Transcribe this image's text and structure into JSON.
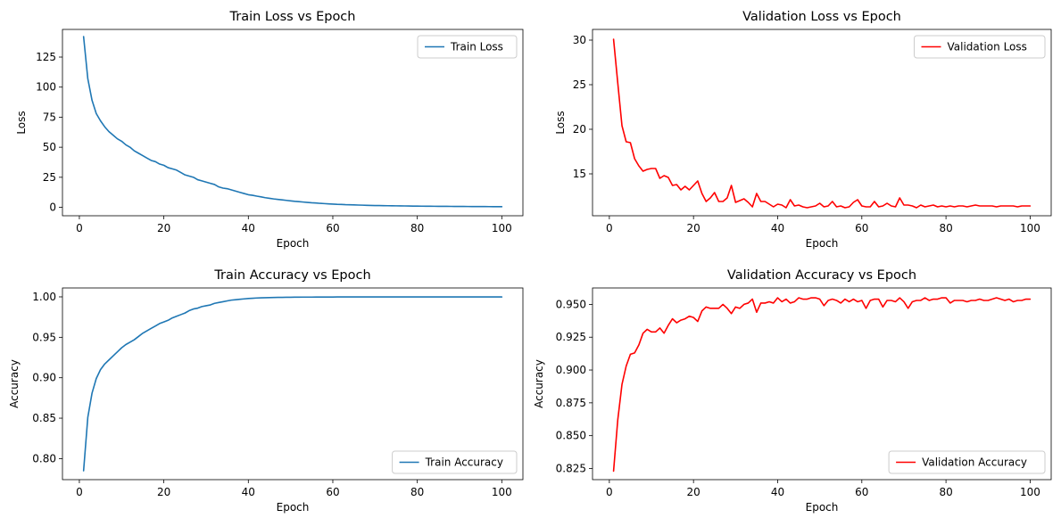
{
  "chart_data": [
    {
      "type": "line",
      "title": "Train Loss vs Epoch",
      "xlabel": "Epoch",
      "ylabel": "Loss",
      "xlim": [
        -4,
        105
      ],
      "ylim": [
        -7,
        148
      ],
      "xticks": [
        0,
        20,
        40,
        60,
        80,
        100
      ],
      "yticks": [
        0,
        25,
        50,
        75,
        100,
        125
      ],
      "legend": "top-right",
      "series": [
        {
          "name": "Train Loss",
          "color": "#1f77b4",
          "x": [
            1,
            2,
            3,
            4,
            5,
            6,
            7,
            8,
            9,
            10,
            11,
            12,
            13,
            14,
            15,
            16,
            17,
            18,
            19,
            20,
            21,
            22,
            23,
            24,
            25,
            26,
            27,
            28,
            29,
            30,
            31,
            32,
            33,
            34,
            35,
            36,
            37,
            38,
            39,
            40,
            41,
            42,
            43,
            44,
            45,
            46,
            47,
            48,
            49,
            50,
            51,
            52,
            53,
            54,
            55,
            56,
            57,
            58,
            59,
            60,
            61,
            62,
            63,
            64,
            65,
            66,
            67,
            68,
            69,
            70,
            71,
            72,
            73,
            74,
            75,
            76,
            77,
            78,
            79,
            80,
            81,
            82,
            83,
            84,
            85,
            86,
            87,
            88,
            89,
            90,
            91,
            92,
            93,
            94,
            95,
            96,
            97,
            98,
            99,
            100
          ],
          "y": [
            142,
            107,
            89,
            78,
            72,
            67,
            63,
            60,
            57,
            55,
            52,
            50,
            47,
            45,
            43,
            41,
            39,
            38,
            36,
            35,
            33,
            32,
            31,
            29,
            27,
            26,
            25,
            23,
            22,
            21,
            20,
            19,
            17,
            16,
            15.5,
            14.5,
            13.5,
            12.5,
            11.5,
            10.5,
            10,
            9.3,
            8.7,
            8,
            7.5,
            7,
            6.6,
            6.2,
            5.8,
            5.4,
            5,
            4.7,
            4.4,
            4.1,
            3.8,
            3.6,
            3.3,
            3.1,
            2.9,
            2.7,
            2.5,
            2.4,
            2.2,
            2.1,
            2,
            1.9,
            1.8,
            1.7,
            1.6,
            1.5,
            1.45,
            1.4,
            1.35,
            1.3,
            1.25,
            1.2,
            1.15,
            1.1,
            1.05,
            1.0,
            0.97,
            0.94,
            0.91,
            0.88,
            0.85,
            0.82,
            0.8,
            0.78,
            0.76,
            0.74,
            0.72,
            0.7,
            0.68,
            0.66,
            0.64,
            0.62,
            0.6,
            0.58,
            0.56,
            0.55
          ]
        }
      ]
    },
    {
      "type": "line",
      "title": "Validation Loss vs Epoch",
      "xlabel": "Epoch",
      "ylabel": "Loss",
      "xlim": [
        -4,
        105
      ],
      "ylim": [
        10.3,
        31.2
      ],
      "xticks": [
        0,
        20,
        40,
        60,
        80,
        100
      ],
      "yticks": [
        15,
        20,
        25,
        30
      ],
      "legend": "top-right",
      "series": [
        {
          "name": "Validation Loss",
          "color": "#ff0000",
          "x": [
            1,
            2,
            3,
            4,
            5,
            6,
            7,
            8,
            9,
            10,
            11,
            12,
            13,
            14,
            15,
            16,
            17,
            18,
            19,
            20,
            21,
            22,
            23,
            24,
            25,
            26,
            27,
            28,
            29,
            30,
            31,
            32,
            33,
            34,
            35,
            36,
            37,
            38,
            39,
            40,
            41,
            42,
            43,
            44,
            45,
            46,
            47,
            48,
            49,
            50,
            51,
            52,
            53,
            54,
            55,
            56,
            57,
            58,
            59,
            60,
            61,
            62,
            63,
            64,
            65,
            66,
            67,
            68,
            69,
            70,
            71,
            72,
            73,
            74,
            75,
            76,
            77,
            78,
            79,
            80,
            81,
            82,
            83,
            84,
            85,
            86,
            87,
            88,
            89,
            90,
            91,
            92,
            93,
            94,
            95,
            96,
            97,
            98,
            99,
            100
          ],
          "y": [
            30.1,
            25.2,
            20.4,
            18.6,
            18.5,
            16.7,
            15.9,
            15.3,
            15.5,
            15.6,
            15.6,
            14.5,
            14.8,
            14.6,
            13.7,
            13.8,
            13.2,
            13.6,
            13.2,
            13.7,
            14.2,
            12.8,
            11.9,
            12.3,
            12.9,
            11.9,
            11.9,
            12.3,
            13.7,
            11.8,
            12.0,
            12.2,
            11.8,
            11.3,
            12.8,
            11.9,
            11.9,
            11.6,
            11.3,
            11.6,
            11.5,
            11.2,
            12.1,
            11.4,
            11.5,
            11.3,
            11.2,
            11.3,
            11.4,
            11.7,
            11.3,
            11.4,
            11.9,
            11.3,
            11.4,
            11.2,
            11.3,
            11.8,
            12.1,
            11.4,
            11.3,
            11.3,
            11.9,
            11.3,
            11.4,
            11.7,
            11.4,
            11.3,
            12.3,
            11.5,
            11.5,
            11.4,
            11.2,
            11.5,
            11.3,
            11.4,
            11.5,
            11.3,
            11.4,
            11.3,
            11.4,
            11.3,
            11.4,
            11.4,
            11.3,
            11.4,
            11.5,
            11.4,
            11.4,
            11.4,
            11.4,
            11.3,
            11.4,
            11.4,
            11.4,
            11.4,
            11.3,
            11.4,
            11.4,
            11.4
          ]
        }
      ]
    },
    {
      "type": "line",
      "title": "Train Accuracy vs Epoch",
      "xlabel": "Epoch",
      "ylabel": "Accuracy",
      "xlim": [
        -4,
        105
      ],
      "ylim": [
        0.774,
        1.011
      ],
      "xticks": [
        0,
        20,
        40,
        60,
        80,
        100
      ],
      "yticks": [
        0.8,
        0.85,
        0.9,
        0.95,
        1.0
      ],
      "ytick_labels": [
        "0.80",
        "0.85",
        "0.90",
        "0.95",
        "1.00"
      ],
      "legend": "bottom-right",
      "series": [
        {
          "name": "Train Accuracy",
          "color": "#1f77b4",
          "x": [
            1,
            2,
            3,
            4,
            5,
            6,
            7,
            8,
            9,
            10,
            11,
            12,
            13,
            14,
            15,
            16,
            17,
            18,
            19,
            20,
            21,
            22,
            23,
            24,
            25,
            26,
            27,
            28,
            29,
            30,
            31,
            32,
            33,
            34,
            35,
            36,
            37,
            38,
            39,
            40,
            41,
            42,
            43,
            44,
            45,
            46,
            47,
            48,
            49,
            50,
            51,
            52,
            53,
            54,
            55,
            56,
            57,
            58,
            59,
            60,
            61,
            62,
            63,
            64,
            65,
            66,
            67,
            68,
            69,
            70,
            71,
            72,
            73,
            74,
            75,
            76,
            77,
            78,
            79,
            80,
            81,
            82,
            83,
            84,
            85,
            86,
            87,
            88,
            89,
            90,
            91,
            92,
            93,
            94,
            95,
            96,
            97,
            98,
            99,
            100
          ],
          "y": [
            0.785,
            0.851,
            0.881,
            0.899,
            0.91,
            0.917,
            0.922,
            0.927,
            0.932,
            0.937,
            0.941,
            0.944,
            0.947,
            0.951,
            0.955,
            0.958,
            0.961,
            0.964,
            0.967,
            0.969,
            0.971,
            0.974,
            0.976,
            0.978,
            0.98,
            0.983,
            0.985,
            0.986,
            0.988,
            0.989,
            0.99,
            0.992,
            0.993,
            0.994,
            0.995,
            0.996,
            0.9965,
            0.997,
            0.9975,
            0.998,
            0.9983,
            0.9986,
            0.9988,
            0.999,
            0.9991,
            0.9992,
            0.9993,
            0.9994,
            0.9995,
            0.9995,
            0.9996,
            0.9996,
            0.9997,
            0.9997,
            0.9997,
            0.9998,
            0.9998,
            0.9998,
            0.9998,
            0.9998,
            0.9999,
            0.9999,
            0.9999,
            0.9999,
            0.9999,
            0.9999,
            0.9999,
            0.9999,
            0.9999,
            0.9999,
            0.9999,
            0.9999,
            0.9999,
            0.9999,
            0.9999,
            0.9999,
            0.9999,
            0.9999,
            0.9999,
            0.9999,
            0.9999,
            0.9999,
            0.9999,
            0.9999,
            0.9999,
            0.9999,
            0.9999,
            0.9999,
            0.9999,
            0.9999,
            0.9999,
            0.9999,
            0.9999,
            0.9999,
            0.9999,
            0.9999,
            0.9999,
            0.9999,
            0.9999,
            0.9999
          ]
        }
      ]
    },
    {
      "type": "line",
      "title": "Validation Accuracy vs Epoch",
      "xlabel": "Epoch",
      "ylabel": "Accuracy",
      "xlim": [
        -4,
        105
      ],
      "ylim": [
        0.8165,
        0.9625
      ],
      "xticks": [
        0,
        20,
        40,
        60,
        80,
        100
      ],
      "yticks": [
        0.825,
        0.85,
        0.875,
        0.9,
        0.925,
        0.95
      ],
      "ytick_labels": [
        "0.825",
        "0.850",
        "0.875",
        "0.900",
        "0.925",
        "0.950"
      ],
      "legend": "bottom-right",
      "series": [
        {
          "name": "Validation Accuracy",
          "color": "#ff0000",
          "x": [
            1,
            2,
            3,
            4,
            5,
            6,
            7,
            8,
            9,
            10,
            11,
            12,
            13,
            14,
            15,
            16,
            17,
            18,
            19,
            20,
            21,
            22,
            23,
            24,
            25,
            26,
            27,
            28,
            29,
            30,
            31,
            32,
            33,
            34,
            35,
            36,
            37,
            38,
            39,
            40,
            41,
            42,
            43,
            44,
            45,
            46,
            47,
            48,
            49,
            50,
            51,
            52,
            53,
            54,
            55,
            56,
            57,
            58,
            59,
            60,
            61,
            62,
            63,
            64,
            65,
            66,
            67,
            68,
            69,
            70,
            71,
            72,
            73,
            74,
            75,
            76,
            77,
            78,
            79,
            80,
            81,
            82,
            83,
            84,
            85,
            86,
            87,
            88,
            89,
            90,
            91,
            92,
            93,
            94,
            95,
            96,
            97,
            98,
            99,
            100
          ],
          "y": [
            0.823,
            0.862,
            0.889,
            0.903,
            0.912,
            0.913,
            0.919,
            0.928,
            0.931,
            0.929,
            0.929,
            0.932,
            0.928,
            0.934,
            0.939,
            0.936,
            0.938,
            0.939,
            0.941,
            0.94,
            0.937,
            0.945,
            0.948,
            0.947,
            0.947,
            0.947,
            0.95,
            0.947,
            0.943,
            0.948,
            0.947,
            0.95,
            0.951,
            0.954,
            0.944,
            0.951,
            0.951,
            0.952,
            0.951,
            0.955,
            0.952,
            0.954,
            0.951,
            0.952,
            0.955,
            0.954,
            0.954,
            0.955,
            0.955,
            0.954,
            0.949,
            0.953,
            0.954,
            0.953,
            0.951,
            0.954,
            0.952,
            0.954,
            0.952,
            0.953,
            0.947,
            0.953,
            0.954,
            0.954,
            0.948,
            0.953,
            0.953,
            0.952,
            0.955,
            0.952,
            0.947,
            0.952,
            0.953,
            0.953,
            0.955,
            0.953,
            0.954,
            0.954,
            0.955,
            0.955,
            0.951,
            0.953,
            0.953,
            0.953,
            0.952,
            0.953,
            0.953,
            0.954,
            0.953,
            0.953,
            0.954,
            0.955,
            0.954,
            0.953,
            0.954,
            0.952,
            0.953,
            0.953,
            0.954,
            0.954
          ]
        }
      ]
    }
  ]
}
